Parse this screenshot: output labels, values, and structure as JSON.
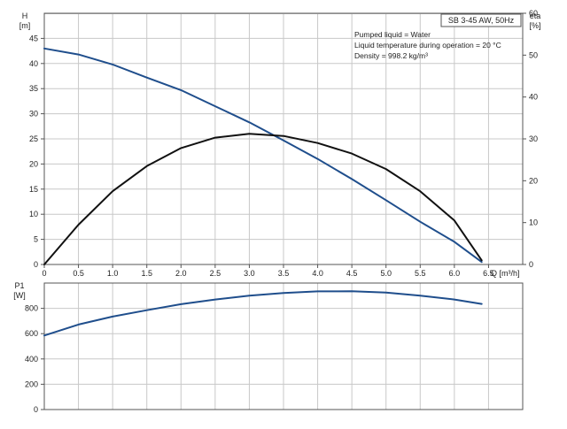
{
  "chart_data": [
    {
      "type": "line",
      "title": "SB 3-45 AW, 50Hz",
      "notes": [
        "Pumped liquid = Water",
        "Liquid temperature during operation = 20 °C",
        "Density = 998.2 kg/m³"
      ],
      "xlabel": "Q [m³/h]",
      "ylabel": "H",
      "ylabel_unit": "[m]",
      "y2label": "eta",
      "y2label_unit": "[%]",
      "xlim": [
        0,
        7.0
      ],
      "ylim": [
        0,
        50
      ],
      "y2lim": [
        0,
        60
      ],
      "x_ticks": [
        "0",
        "0.5",
        "1.0",
        "1.5",
        "2.0",
        "2.5",
        "3.0",
        "3.5",
        "4.0",
        "4.5",
        "5.0",
        "5.5",
        "6.0",
        "6.5"
      ],
      "y_ticks": [
        "0",
        "5",
        "10",
        "15",
        "20",
        "25",
        "30",
        "35",
        "40",
        "45"
      ],
      "y2_ticks": [
        "0",
        "10",
        "20",
        "30",
        "40",
        "50",
        "60"
      ],
      "grid": true,
      "series": [
        {
          "axis": "left",
          "color": "#1f4e8c",
          "x": [
            0,
            0.5,
            1.0,
            1.5,
            2.0,
            2.5,
            3.0,
            3.5,
            4.0,
            4.5,
            5.0,
            5.5,
            6.0,
            6.4
          ],
          "y": [
            43.0,
            41.8,
            39.8,
            37.2,
            34.7,
            31.5,
            28.3,
            24.7,
            21.0,
            17.0,
            12.8,
            8.5,
            4.5,
            0.5
          ]
        },
        {
          "axis": "right",
          "color": "#111111",
          "x": [
            0,
            0.5,
            1.0,
            1.5,
            2.0,
            2.5,
            3.0,
            3.5,
            4.0,
            4.5,
            5.0,
            5.5,
            6.0,
            6.4
          ],
          "y": [
            0,
            9.5,
            17.5,
            23.5,
            27.8,
            30.3,
            31.2,
            30.7,
            29.0,
            26.5,
            22.8,
            17.5,
            10.5,
            1.0
          ]
        }
      ]
    },
    {
      "type": "line",
      "ylabel": "P1",
      "ylabel_unit": "[W]",
      "xlim": [
        0,
        7.0
      ],
      "ylim": [
        0,
        1000
      ],
      "y_ticks": [
        "0",
        "200",
        "400",
        "600",
        "800"
      ],
      "grid": true,
      "series": [
        {
          "color": "#1f4e8c",
          "x": [
            0,
            0.5,
            1.0,
            1.5,
            2.0,
            2.5,
            3.0,
            3.5,
            4.0,
            4.5,
            5.0,
            5.5,
            6.0,
            6.4
          ],
          "y": [
            585,
            672,
            735,
            785,
            833,
            870,
            900,
            922,
            934,
            935,
            925,
            900,
            870,
            835
          ]
        }
      ]
    }
  ]
}
